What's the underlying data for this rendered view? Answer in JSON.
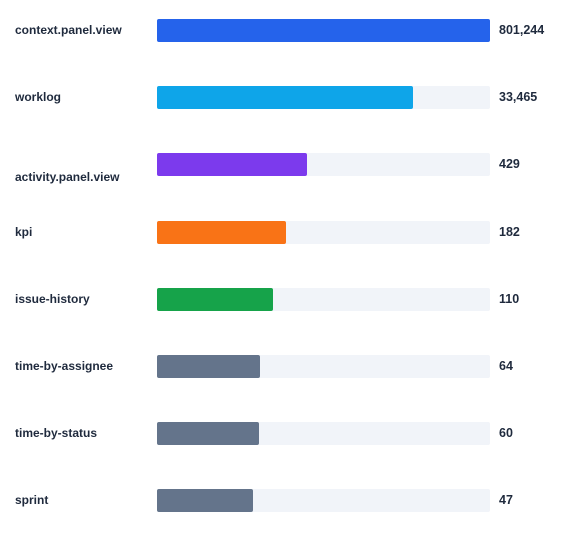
{
  "chart_data": {
    "type": "bar",
    "orientation": "horizontal",
    "title": "",
    "xlabel": "",
    "ylabel": "",
    "grid": false,
    "categories": [
      "context.panel.view",
      "worklog",
      "activity.panel.view",
      "kpi",
      "issue-history",
      "time-by-assignee",
      "time-by-status",
      "sprint"
    ],
    "values": [
      801244,
      33465,
      429,
      182,
      110,
      64,
      60,
      47
    ],
    "value_labels": [
      "801,244",
      "33,465",
      "429",
      "182",
      "110",
      "64",
      "60",
      "47"
    ],
    "bar_fill_fraction": [
      1.0,
      0.77,
      0.45,
      0.388,
      0.348,
      0.31,
      0.307,
      0.288
    ],
    "colors": [
      "#2563eb",
      "#0ea5e9",
      "#7c3aed",
      "#f97316",
      "#16a34a",
      "#64748b",
      "#64748b",
      "#64748b"
    ],
    "track_color": "#f1f4f9",
    "scale": "non-linear (bar length not proportional to value)"
  }
}
